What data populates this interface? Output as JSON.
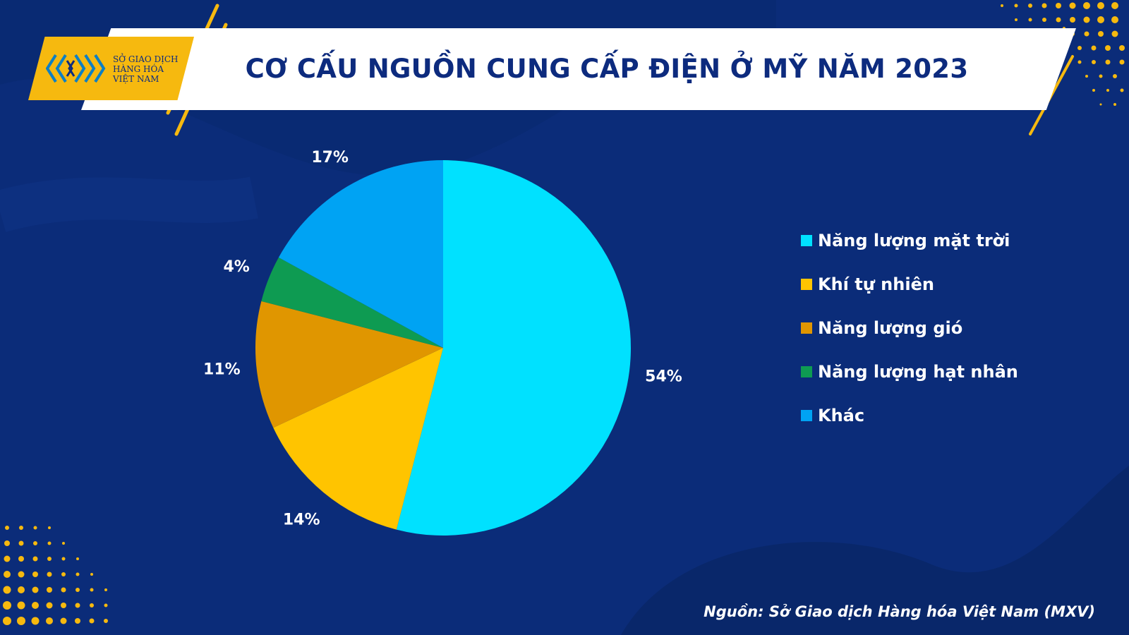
{
  "header": {
    "title": "CƠ CẤU NGUỒN CUNG CẤP ĐIỆN Ở MỸ NĂM 2023",
    "logo_lines": [
      "SỞ GIAO DỊCH",
      "HÀNG HÓA",
      "VIỆT NAM"
    ]
  },
  "chart_data": {
    "type": "pie",
    "title": "CƠ CẤU NGUỒN CUNG CẤP ĐIỆN Ở MỸ NĂM 2023",
    "slices": [
      {
        "label": "Năng lượng mặt trời",
        "value": 54,
        "value_label": "54%",
        "color": "#00e1ff"
      },
      {
        "label": "Khí tự nhiên",
        "value": 14,
        "value_label": "14%",
        "color": "#ffc400"
      },
      {
        "label": "Năng lượng gió",
        "value": 11,
        "value_label": "11%",
        "color": "#e09600"
      },
      {
        "label": "Năng lượng hạt nhân",
        "value": 4,
        "value_label": "4%",
        "color": "#0e9b52"
      },
      {
        "label": "Khác",
        "value": 17,
        "value_label": "17%",
        "color": "#00a3f3"
      }
    ],
    "legend_position": "right"
  },
  "footer": {
    "source": "Nguồn: Sở Giao dịch Hàng hóa Việt Nam (MXV)"
  },
  "colors": {
    "background": "#0b2c79",
    "accent": "#f6b90f",
    "title_text": "#0d2b7e"
  }
}
